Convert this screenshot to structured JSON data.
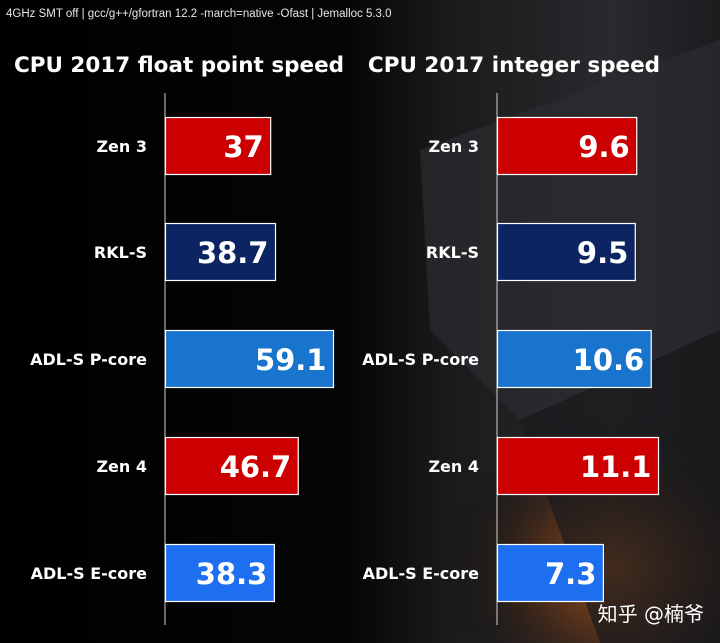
{
  "config_line": "4GHz SMT off | gcc/g++/gfortran 12.2  -march=native -Ofast | Jemalloc 5.3.0",
  "watermark": "知乎 @楠爷",
  "colors": {
    "amd_red": "#cc0000",
    "rkl_navy": "#0c2461",
    "p_core_blue": "#1874cd",
    "e_core_blue": "#1e6ff0",
    "axis": "#d0d0d0"
  },
  "chart_data": [
    {
      "type": "bar",
      "orientation": "horizontal",
      "title": "CPU 2017 float point speed",
      "categories": [
        "Zen 3",
        "RKL-S",
        "ADL-S P-core",
        "Zen 4",
        "ADL-S E-core"
      ],
      "values": [
        37,
        38.7,
        59.1,
        46.7,
        38.3
      ],
      "value_labels": [
        "37",
        "38.7",
        "59.1",
        "46.7",
        "38.3"
      ],
      "bar_colors": [
        "#cc0000",
        "#0c2461",
        "#1874cd",
        "#cc0000",
        "#1e6ff0"
      ],
      "xlim": [
        0,
        59.1
      ],
      "grid": false
    },
    {
      "type": "bar",
      "orientation": "horizontal",
      "title": "CPU 2017 integer speed",
      "categories": [
        "Zen 3",
        "RKL-S",
        "ADL-S P-core",
        "Zen 4",
        "ADL-S E-core"
      ],
      "values": [
        9.6,
        9.5,
        10.6,
        11.1,
        7.3
      ],
      "value_labels": [
        "9.6",
        "9.5",
        "10.6",
        "11.1",
        "7.3"
      ],
      "bar_colors": [
        "#cc0000",
        "#0c2461",
        "#1874cd",
        "#cc0000",
        "#1e6ff0"
      ],
      "xlim": [
        0,
        11.1
      ],
      "grid": false
    }
  ]
}
